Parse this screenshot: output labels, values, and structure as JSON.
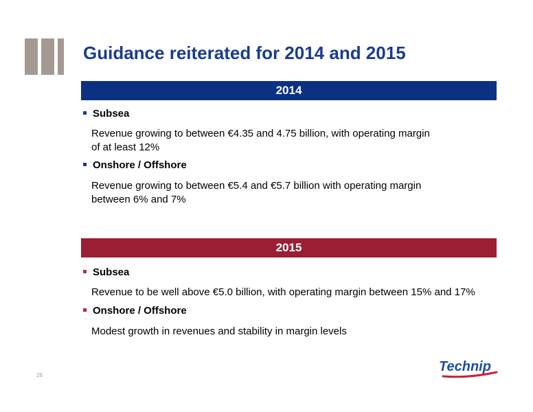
{
  "title": "Guidance reiterated for 2014 and 2015",
  "colors": {
    "title": "#1a3b8f",
    "band_2014": "#0c3183",
    "band_2015": "#9a1e34",
    "deco_bars": "#a59a93",
    "logo_blue": "#1c4fa0",
    "logo_red": "#d0202f"
  },
  "sections": [
    {
      "year": "2014",
      "items": [
        {
          "heading": "Subsea",
          "lines": [
            "Revenue growing to between €4.35 and 4.75 billion, with operating margin",
            "of at least 12%"
          ]
        },
        {
          "heading": "Onshore / Offshore",
          "lines": [
            "Revenue growing to between €5.4 and €5.7 billion with operating margin",
            "between 6% and 7%"
          ]
        }
      ]
    },
    {
      "year": "2015",
      "items": [
        {
          "heading": "Subsea",
          "lines": [
            "Revenue to be well above €5.0 billion, with operating margin between 15% and 17%"
          ]
        },
        {
          "heading": "Onshore / Offshore",
          "lines": [
            "Modest growth in revenues and stability in margin levels"
          ]
        }
      ]
    }
  ],
  "page_number": "26",
  "logo": {
    "text": "Technip",
    "icon": "technip-logo"
  }
}
